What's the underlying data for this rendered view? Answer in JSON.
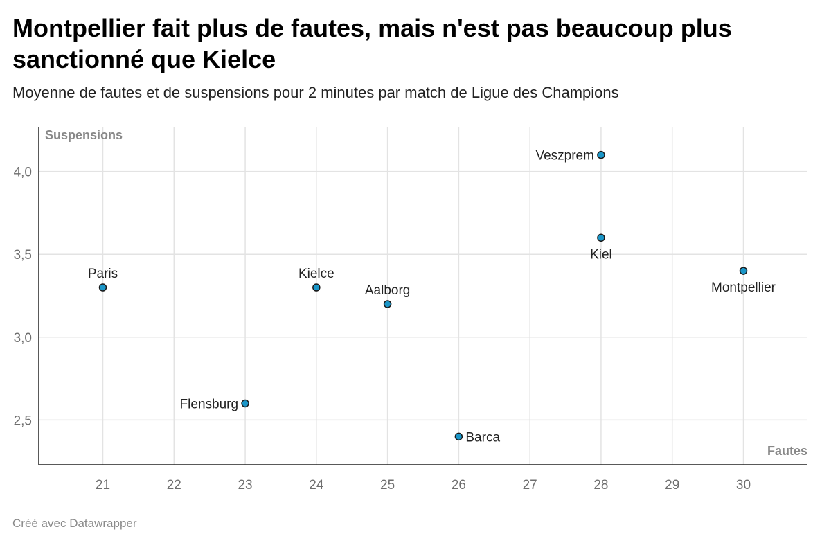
{
  "header": {
    "title": "Montpellier fait plus de fautes, mais n'est pas beaucoup plus sanctionné que Kielce",
    "subtitle": "Moyenne de fautes et de suspensions pour 2 minutes par match de Ligue des Champions"
  },
  "footer": {
    "credit": "Créé avec Datawrapper"
  },
  "colors": {
    "point": "#1a96c8",
    "grid": "#e3e3e3",
    "axis": "#222222"
  },
  "chart_data": {
    "type": "scatter",
    "xlabel": "Fautes",
    "ylabel": "Suspensions",
    "xlim": [
      20.1,
      30.9
    ],
    "ylim": [
      2.23,
      4.27
    ],
    "grid": true,
    "x_ticks": [
      21,
      22,
      23,
      24,
      25,
      26,
      27,
      28,
      29,
      30
    ],
    "x_tick_labels": [
      "21",
      "22",
      "23",
      "24",
      "25",
      "26",
      "27",
      "28",
      "29",
      "30"
    ],
    "y_ticks": [
      2.5,
      3.0,
      3.5,
      4.0
    ],
    "y_tick_labels": [
      "2,5",
      "3,0",
      "3,5",
      "4,0"
    ],
    "points": [
      {
        "label": "Paris",
        "x": 21,
        "y": 3.3,
        "label_position": "above"
      },
      {
        "label": "Flensburg",
        "x": 23,
        "y": 2.6,
        "label_position": "left"
      },
      {
        "label": "Kielce",
        "x": 24,
        "y": 3.3,
        "label_position": "above"
      },
      {
        "label": "Aalborg",
        "x": 25,
        "y": 3.2,
        "label_position": "above"
      },
      {
        "label": "Barca",
        "x": 26,
        "y": 2.4,
        "label_position": "right"
      },
      {
        "label": "Veszprem",
        "x": 28,
        "y": 4.1,
        "label_position": "left"
      },
      {
        "label": "Kiel",
        "x": 28,
        "y": 3.6,
        "label_position": "below"
      },
      {
        "label": "Montpellier",
        "x": 30,
        "y": 3.4,
        "label_position": "below"
      }
    ]
  }
}
